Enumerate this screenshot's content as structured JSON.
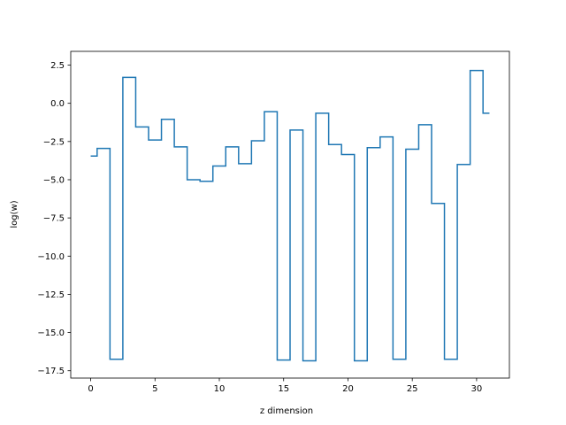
{
  "chart_data": {
    "type": "line",
    "drawstyle": "steps-mid",
    "xlabel": "z dimension",
    "ylabel": "log(w)",
    "xlim": [
      -1.55,
      32.55
    ],
    "ylim": [
      -17.98,
      3.4
    ],
    "grid": false,
    "xticks": [
      0,
      5,
      10,
      15,
      20,
      25,
      30
    ],
    "xtick_labels": [
      "0",
      "5",
      "10",
      "15",
      "20",
      "25",
      "30"
    ],
    "yticks": [
      2.5,
      0.0,
      -2.5,
      -5.0,
      -7.5,
      -10.0,
      -12.5,
      -15.0,
      -17.5
    ],
    "ytick_labels": [
      "2.5",
      "0.0",
      "−2.5",
      "−5.0",
      "−7.5",
      "−10.0",
      "−12.5",
      "−15.0",
      "−17.5"
    ],
    "series": [
      {
        "color": "#1f77b4",
        "x": [
          0,
          1,
          2,
          3,
          4,
          5,
          6,
          7,
          8,
          9,
          10,
          11,
          12,
          13,
          14,
          15,
          16,
          17,
          18,
          19,
          20,
          21,
          22,
          23,
          24,
          25,
          26,
          27,
          28,
          29,
          30,
          31
        ],
        "y": [
          -3.45,
          -2.95,
          -16.75,
          1.7,
          -1.55,
          -2.4,
          -1.05,
          -2.85,
          -5.0,
          -5.1,
          -4.1,
          -2.85,
          -3.95,
          -2.45,
          -0.55,
          -16.8,
          -1.75,
          -16.85,
          -0.65,
          -2.7,
          -3.35,
          -16.85,
          -2.9,
          -2.2,
          -16.75,
          -3.0,
          -1.4,
          -6.55,
          -16.75,
          -4.0,
          2.15,
          -0.65
        ]
      }
    ]
  }
}
